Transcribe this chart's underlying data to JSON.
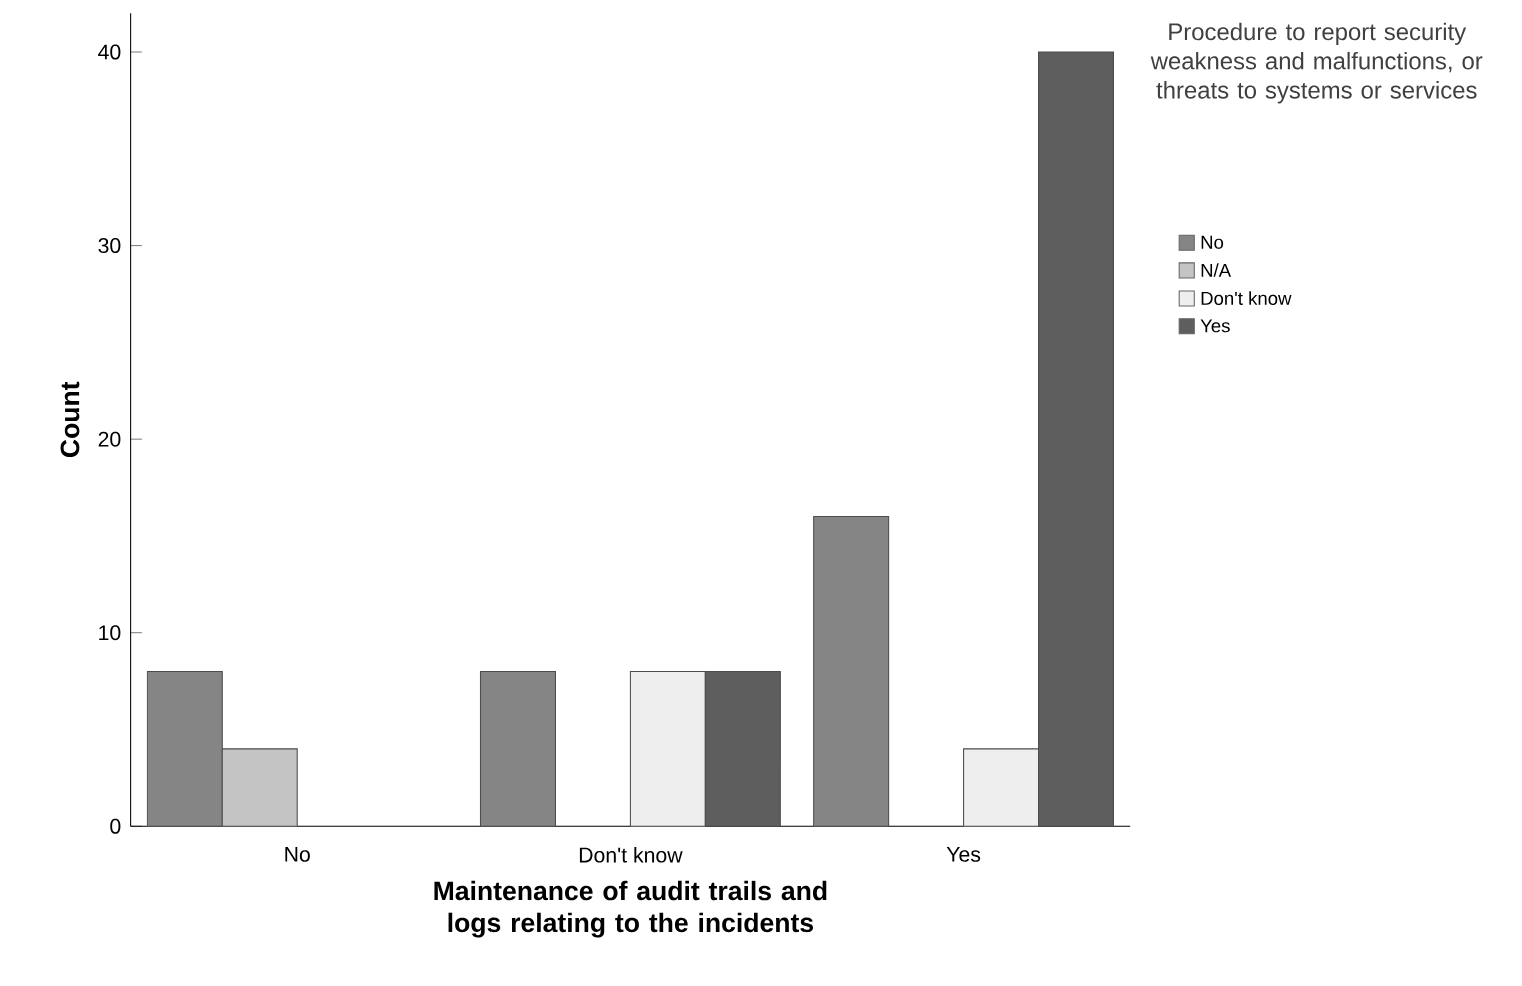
{
  "chart_data": {
    "type": "bar",
    "xlabel": "Maintenance of audit trails and logs relating to the incidents",
    "ylabel": "Count",
    "legend_title": "Procedure to report security weakness and malfunctions, or threats to systems or services",
    "categories": [
      "No",
      "Don't know",
      "Yes"
    ],
    "series": [
      {
        "name": "No",
        "color": "#858585",
        "values": [
          8,
          8,
          16
        ]
      },
      {
        "name": "N/A",
        "color": "#c4c4c4",
        "values": [
          4,
          null,
          null
        ]
      },
      {
        "name": "Don't know",
        "color": "#eeeeee",
        "values": [
          null,
          8,
          4
        ]
      },
      {
        "name": "Yes",
        "color": "#5e5e5e",
        "values": [
          null,
          8,
          40
        ]
      }
    ],
    "ylim": [
      0,
      42
    ],
    "yticks": [
      0,
      10,
      20,
      30,
      40
    ],
    "grid": false,
    "legend": "top right"
  }
}
